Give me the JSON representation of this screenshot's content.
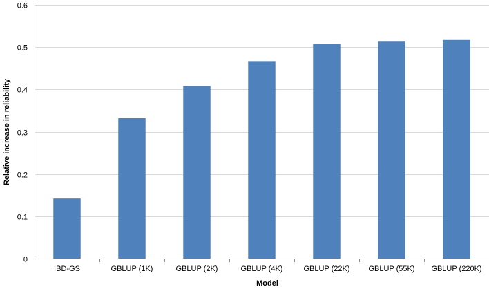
{
  "chart_data": {
    "type": "bar",
    "title": "",
    "xlabel": "Model",
    "ylabel": "Relative increase in reliability",
    "ylim": [
      0,
      0.6
    ],
    "yticks": [
      "0",
      "0.1",
      "0.2",
      "0.3",
      "0.4",
      "0.5",
      "0.6"
    ],
    "grid": true,
    "categories": [
      "IBD-GS",
      "GBLUP (1K)",
      "GBLUP (2K)",
      "GBLUP (4K)",
      "GBLUP (22K)",
      "GBLUP (55K)",
      "GBLUP (220K)"
    ],
    "values": [
      0.142,
      0.332,
      0.408,
      0.467,
      0.507,
      0.513,
      0.517
    ],
    "bar_color": "#4f81bd",
    "grid_color": "#d9d9d9",
    "axis_color": "#868686"
  }
}
